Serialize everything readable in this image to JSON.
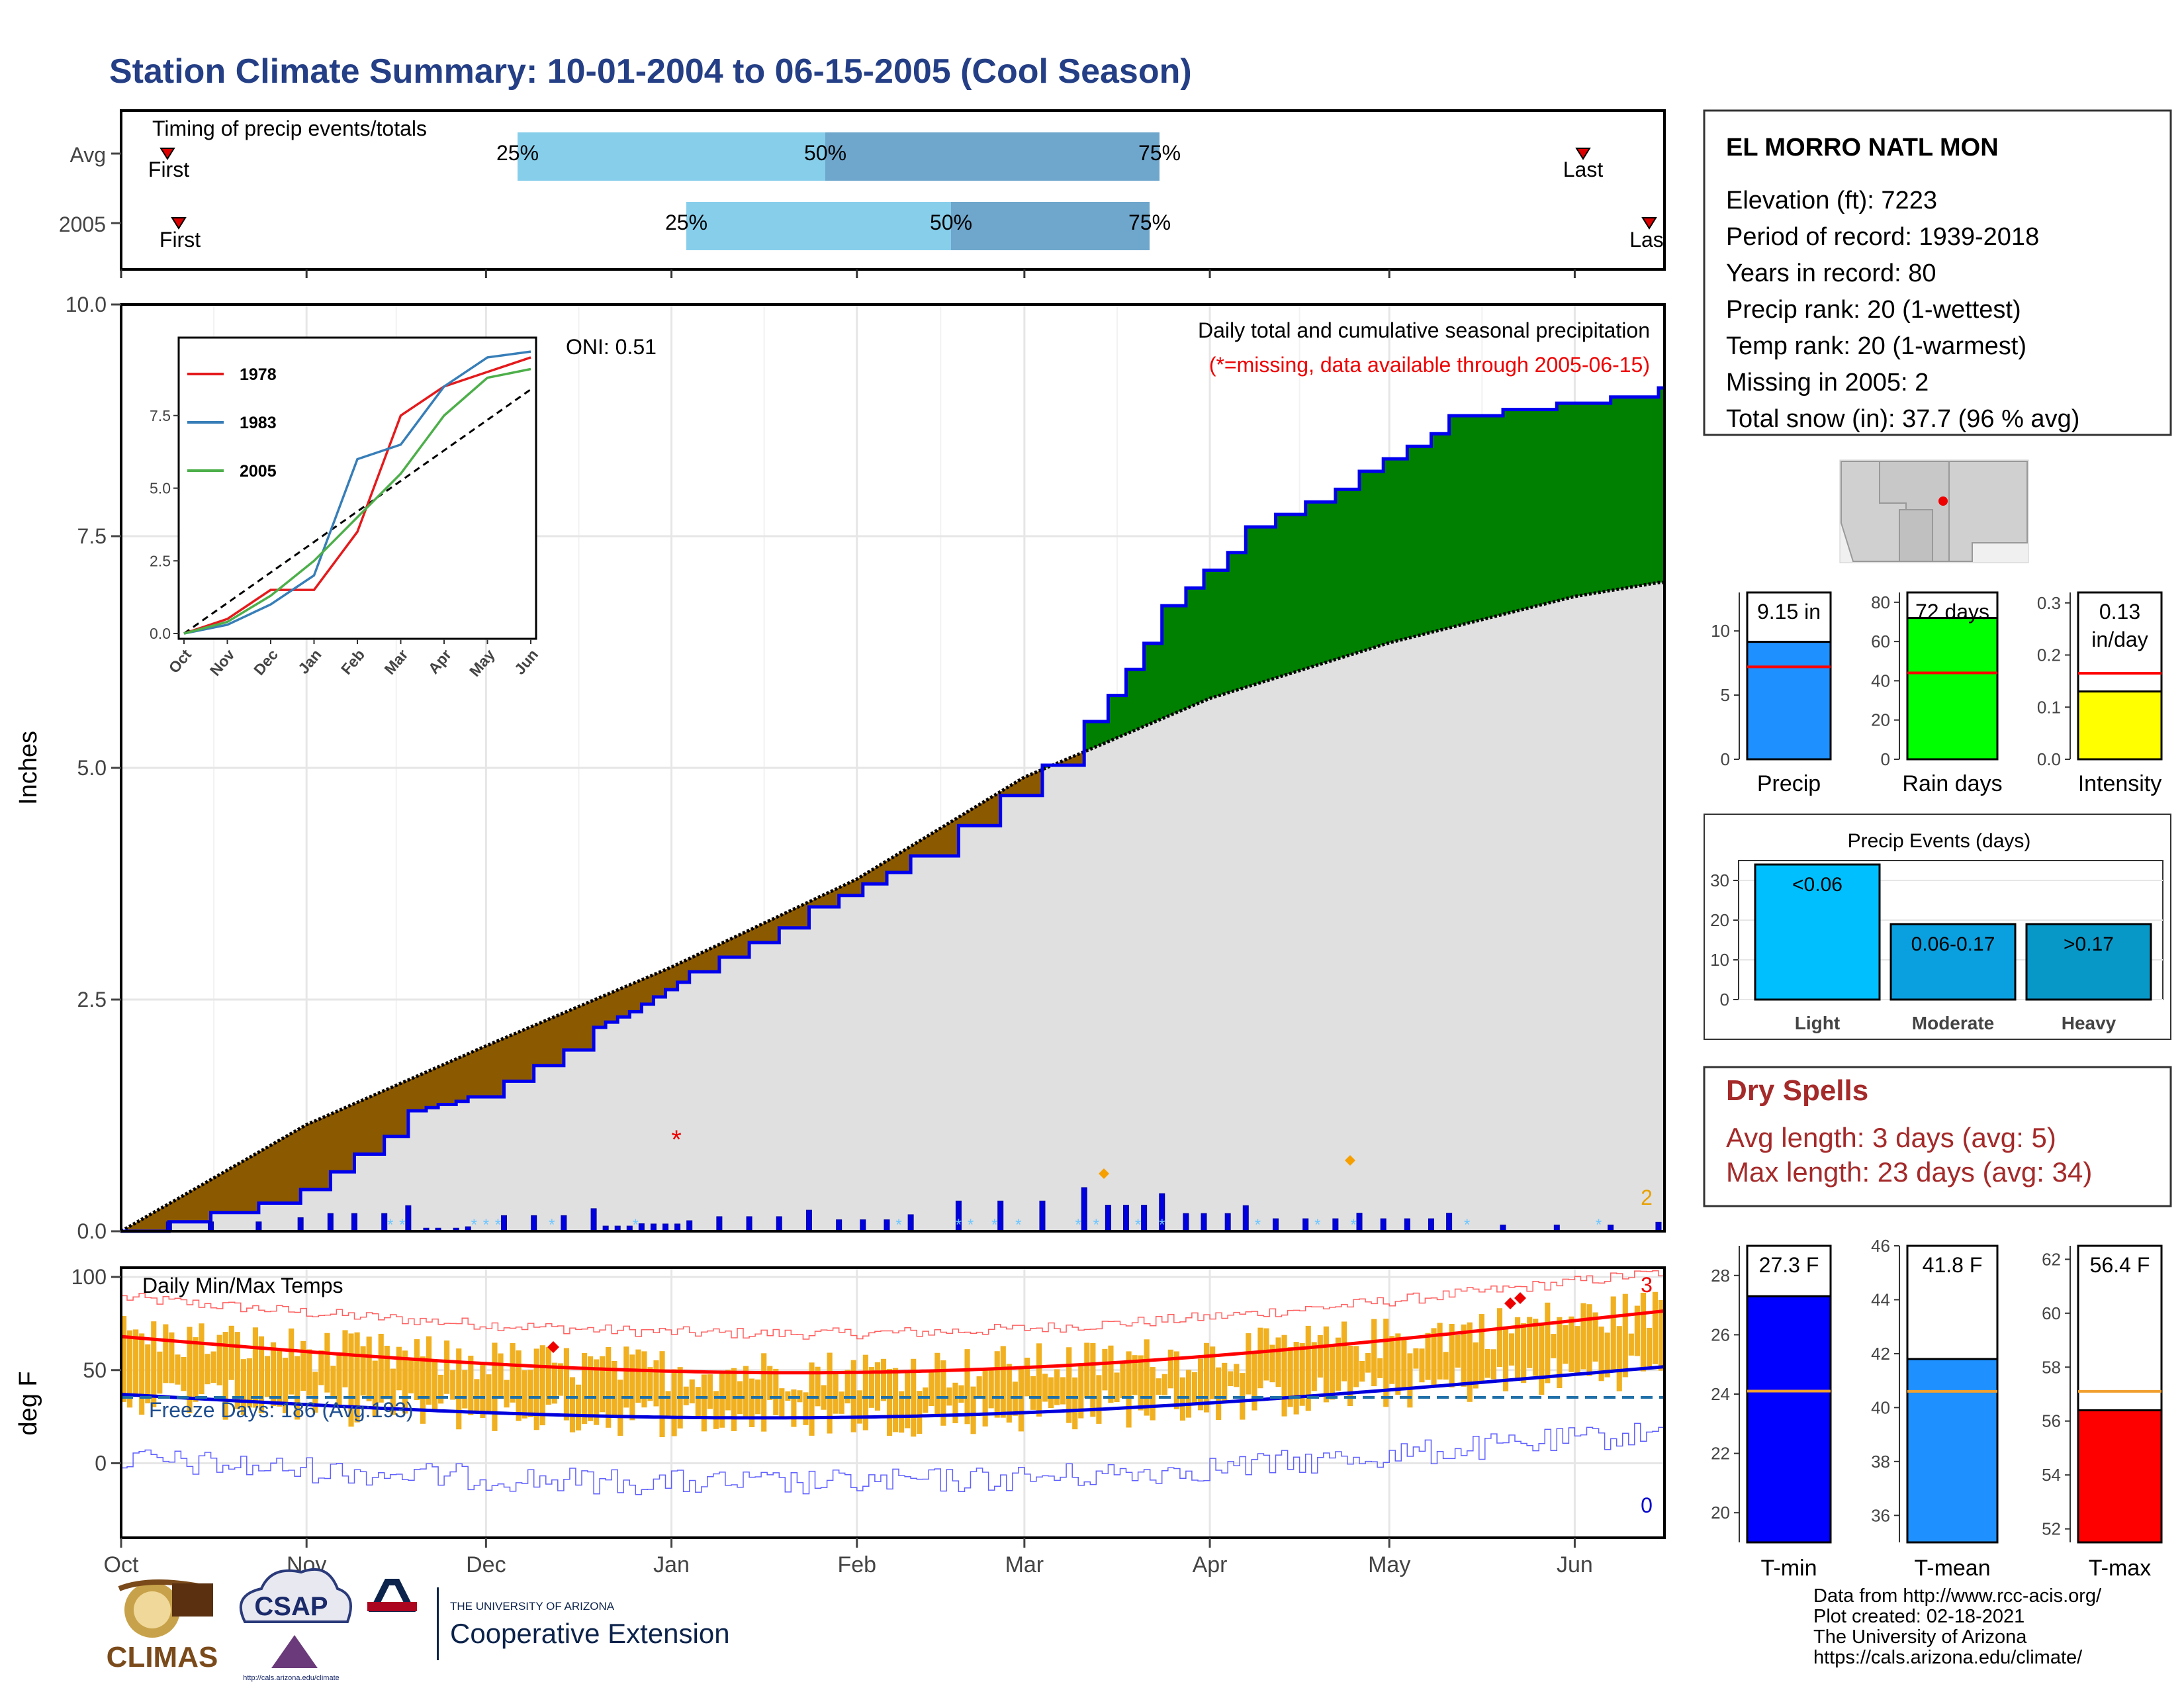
{
  "title": "Station Climate Summary: 10-01-2004 to 06-15-2005 (Cool Season)",
  "colors": {
    "title": "#243f85",
    "wet": "#008000",
    "dry": "#8B5A00",
    "avg_fill": "#e0e0e0",
    "cum_line": "#0000ee",
    "light_blue": "#87CEEB",
    "mid_blue": "#6fa6cc",
    "tmin": "#0000ff",
    "tmean": "#1e90ff",
    "tmax": "#ff0000",
    "precip_bar": "#1e90ff",
    "rain_bar": "#00ff00",
    "intensity_bar": "#ffff00",
    "dry_spell": "#a52a2a",
    "temp_bar": "#f0b020"
  },
  "timing": {
    "label": "Timing of precip events/totals",
    "rows": [
      {
        "name": "Avg",
        "first": "First",
        "last": "Last",
        "p25": "25%",
        "p50": "50%",
        "p75": "75%"
      },
      {
        "name": "2005",
        "first": "First",
        "last": "Las",
        "p25": "25%",
        "p50": "50%",
        "p75": "75%"
      }
    ]
  },
  "station": {
    "name": "EL MORRO NATL MON",
    "lines": [
      "Elevation (ft): 7223",
      "Period of record: 1939-2018",
      "Years in record: 80",
      "Precip rank: 20 (1-wettest)",
      "Temp rank: 20 (1-warmest)",
      "Missing in 2005: 2",
      "Total snow (in): 37.7 (96 % avg)"
    ]
  },
  "chart_data": [
    {
      "type": "area",
      "ylabel": "Inches",
      "ylim": [
        0,
        10
      ],
      "yticks": [
        "0.0",
        "2.5",
        "5.0",
        "7.5",
        "10.0"
      ],
      "xticks": [
        "Oct",
        "Nov",
        "Dec",
        "Jan",
        "Feb",
        "Mar",
        "Apr",
        "May",
        "Jun"
      ],
      "annotation_title": "Daily total and cumulative seasonal precipitation",
      "annotation_missing": "(*=missing, data available through 2005-06-15)",
      "oni": "ONI: 0.51",
      "right_label": "2",
      "avg_cumulative": {
        "x": [
          "10-01",
          "11-01",
          "12-01",
          "01-01",
          "02-01",
          "03-01",
          "04-01",
          "05-01",
          "06-01",
          "06-15"
        ],
        "y": [
          0,
          1.15,
          2.0,
          2.85,
          3.8,
          4.9,
          5.75,
          6.35,
          6.85,
          7.0
        ]
      },
      "cumulative_2005": {
        "x": [
          "10-01",
          "10-31",
          "11-18",
          "11-28",
          "12-19",
          "12-27",
          "01-04",
          "01-24",
          "02-10",
          "03-11",
          "03-24",
          "04-07",
          "04-26",
          "05-11",
          "06-15"
        ],
        "y": [
          0,
          0.45,
          1.3,
          1.45,
          2.2,
          2.45,
          2.8,
          3.5,
          4.05,
          5.5,
          6.75,
          7.6,
          8.2,
          8.8,
          9.1
        ]
      }
    },
    {
      "type": "line",
      "title": "inset",
      "xticks": [
        "Oct",
        "Nov",
        "Dec",
        "Jan",
        "Feb",
        "Mar",
        "Apr",
        "May",
        "Jun"
      ],
      "yticks": [
        "0.0",
        "2.5",
        "5.0",
        "7.5"
      ],
      "series": [
        {
          "name": "1978",
          "color": "#e41a1c",
          "values": [
            0,
            0.5,
            1.5,
            1.5,
            3.5,
            7.5,
            8.5,
            9.0,
            9.5
          ]
        },
        {
          "name": "1983",
          "color": "#377eb8",
          "values": [
            0,
            0.3,
            1.0,
            2.0,
            6.0,
            6.5,
            8.5,
            9.5,
            9.7
          ]
        },
        {
          "name": "2005",
          "color": "#4daf4a",
          "values": [
            0,
            0.4,
            1.3,
            2.5,
            4.0,
            5.5,
            7.5,
            8.8,
            9.1
          ]
        }
      ]
    },
    {
      "type": "bar",
      "title": "Precip",
      "bar_label": "9.15 in",
      "value": 9.15,
      "avg": 7.2,
      "ylim": [
        0,
        13
      ],
      "yticks": [
        "0",
        "5",
        "10"
      ]
    },
    {
      "type": "bar",
      "title": "Rain days",
      "bar_label": "72 days",
      "value": 72,
      "avg": 44,
      "ylim": [
        0,
        85
      ],
      "yticks": [
        "0",
        "20",
        "40",
        "60",
        "80"
      ]
    },
    {
      "type": "bar",
      "title": "Intensity",
      "bar_label": "0.13 in/day",
      "bar_label_1": "0.13",
      "bar_label_2": "in/day",
      "value": 0.13,
      "avg": 0.165,
      "ylim": [
        0,
        0.32
      ],
      "yticks": [
        "0.0",
        "0.1",
        "0.2",
        "0.3"
      ]
    },
    {
      "type": "bar",
      "title": "Precip Events (days)",
      "categories": [
        "Light",
        "Moderate",
        "Heavy"
      ],
      "bar_labels": [
        "<0.06",
        "0.06-0.17",
        ">0.17"
      ],
      "values": [
        34,
        19,
        19
      ],
      "ylim": [
        0,
        35
      ],
      "yticks": [
        "0",
        "10",
        "20",
        "30"
      ]
    },
    {
      "type": "line",
      "title": "Daily Min/Max Temps",
      "ylabel": "deg F",
      "ylim": [
        -40,
        105
      ],
      "yticks": [
        "0",
        "50",
        "100"
      ],
      "xticks": [
        "Oct",
        "Nov",
        "Dec",
        "Jan",
        "Feb",
        "Mar",
        "Apr",
        "May",
        "Jun"
      ],
      "freeze_days": "Freeze Days: 186 (Avg:193)",
      "label_top": "3",
      "label_bottom": "0"
    },
    {
      "type": "bar",
      "title": "T-min",
      "bar_label": "27.3 F",
      "value": 27.3,
      "avg": 24.1,
      "ylim": [
        19,
        29
      ],
      "yticks": [
        "20",
        "22",
        "24",
        "26",
        "28"
      ]
    },
    {
      "type": "bar",
      "title": "T-mean",
      "bar_label": "41.8 F",
      "value": 41.8,
      "avg": 40.6,
      "ylim": [
        35,
        46
      ],
      "yticks": [
        "36",
        "38",
        "40",
        "42",
        "44",
        "46"
      ]
    },
    {
      "type": "bar",
      "title": "T-max",
      "bar_label": "56.4 F",
      "value": 56.4,
      "avg": 57.1,
      "ylim": [
        51.5,
        62.5
      ],
      "yticks": [
        "52",
        "54",
        "56",
        "58",
        "60",
        "62"
      ]
    }
  ],
  "dry_spells": {
    "title": "Dry Spells",
    "avg": "Avg length: 3 days (avg: 5)",
    "max": "Max length: 23 days (avg: 34)"
  },
  "footer": {
    "lines": [
      "Data from http://www.rcc-acis.org/",
      "Plot created: 02-18-2021",
      "The University of Arizona",
      "https://cals.arizona.edu/climate/"
    ]
  },
  "logos": {
    "climas": "CLIMAS",
    "csap": "CSAP",
    "csap_url": "http://cals.arizona.edu/climate",
    "ua_small": "THE UNIVERSITY OF ARIZONA",
    "ua_big": "Cooperative Extension"
  }
}
